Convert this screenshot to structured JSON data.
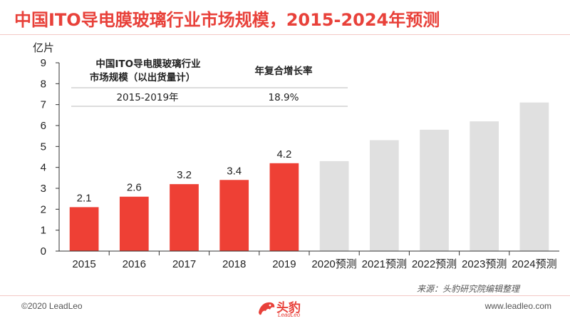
{
  "title": "中国ITO导电膜玻璃行业市场规模，2015-2024年预测",
  "source": "来源：头豹研究院编辑整理",
  "footer": {
    "copyright": "©2020 LeadLeo",
    "website": "www.leadleo.com",
    "logo_cn": "头豹",
    "logo_en": "LeadLeo"
  },
  "colors": {
    "actual": "#ee4035",
    "forecast": "#e0e0e0",
    "accent": "#e8413a"
  },
  "chart_data": {
    "type": "bar",
    "ylabel": "亿片",
    "ylim": [
      0,
      9
    ],
    "yticks": [
      "0",
      "1",
      "2",
      "3",
      "4",
      "5",
      "6",
      "7",
      "8",
      "9"
    ],
    "grid": false,
    "categories": [
      "2015",
      "2016",
      "2017",
      "2018",
      "2019",
      "2020预测",
      "2021预测",
      "2022预测",
      "2023预测",
      "2024预测"
    ],
    "values": [
      2.1,
      2.6,
      3.2,
      3.4,
      4.2,
      4.3,
      5.3,
      5.8,
      6.2,
      7.1
    ],
    "data_labels": [
      "2.1",
      "2.6",
      "3.2",
      "3.4",
      "4.2",
      "",
      "",
      "",
      "",
      ""
    ],
    "actual_count": 5,
    "table": {
      "header_left": [
        "中国ITO导电膜玻璃行业",
        "市场规模（以出货量计）"
      ],
      "header_right": "年复合增长率",
      "period": "2015-2019年",
      "cagr": "18.9%"
    }
  }
}
